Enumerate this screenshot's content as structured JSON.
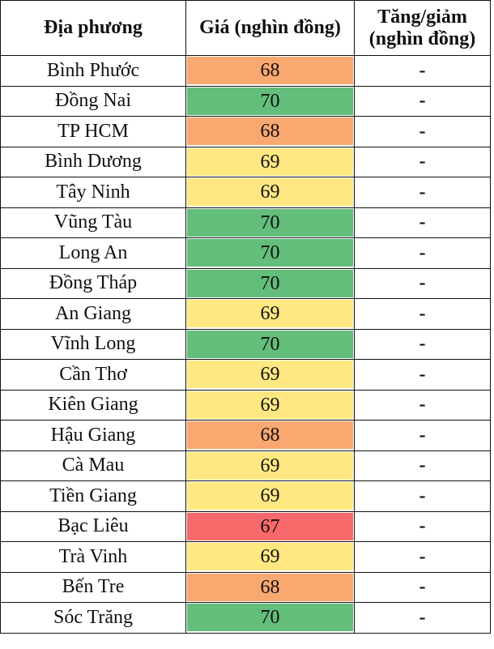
{
  "headers": [
    "Địa phương",
    "Giá (nghìn đồng)",
    "Tăng/giảm (nghìn đồng)"
  ],
  "colors": {
    "67": "#F8696B",
    "68": "#F9A870",
    "69": "#FFE882",
    "70": "#63BE7B"
  },
  "rows": [
    {
      "place": "Bình Phước",
      "price": "68",
      "change": "-"
    },
    {
      "place": "Đồng Nai",
      "price": "70",
      "change": "-"
    },
    {
      "place": "TP HCM",
      "price": "68",
      "change": "-"
    },
    {
      "place": "Bình Dương",
      "price": "69",
      "change": "-"
    },
    {
      "place": "Tây Ninh",
      "price": "69",
      "change": "-"
    },
    {
      "place": "Vũng Tàu",
      "price": "70",
      "change": "-"
    },
    {
      "place": "Long An",
      "price": "70",
      "change": "-"
    },
    {
      "place": "Đồng Tháp",
      "price": "70",
      "change": "-"
    },
    {
      "place": "An Giang",
      "price": "69",
      "change": "-"
    },
    {
      "place": "Vĩnh Long",
      "price": "70",
      "change": "-"
    },
    {
      "place": "Cần Thơ",
      "price": "69",
      "change": "-"
    },
    {
      "place": "Kiên Giang",
      "price": "69",
      "change": "-"
    },
    {
      "place": "Hậu Giang",
      "price": "68",
      "change": "-"
    },
    {
      "place": "Cà Mau",
      "price": "69",
      "change": "-"
    },
    {
      "place": "Tiền Giang",
      "price": "69",
      "change": "-"
    },
    {
      "place": "Bạc Liêu",
      "price": "67",
      "change": "-"
    },
    {
      "place": "Trà Vinh",
      "price": "69",
      "change": "-"
    },
    {
      "place": "Bến Tre",
      "price": "68",
      "change": "-"
    },
    {
      "place": "Sóc Trăng",
      "price": "70",
      "change": "-"
    }
  ]
}
